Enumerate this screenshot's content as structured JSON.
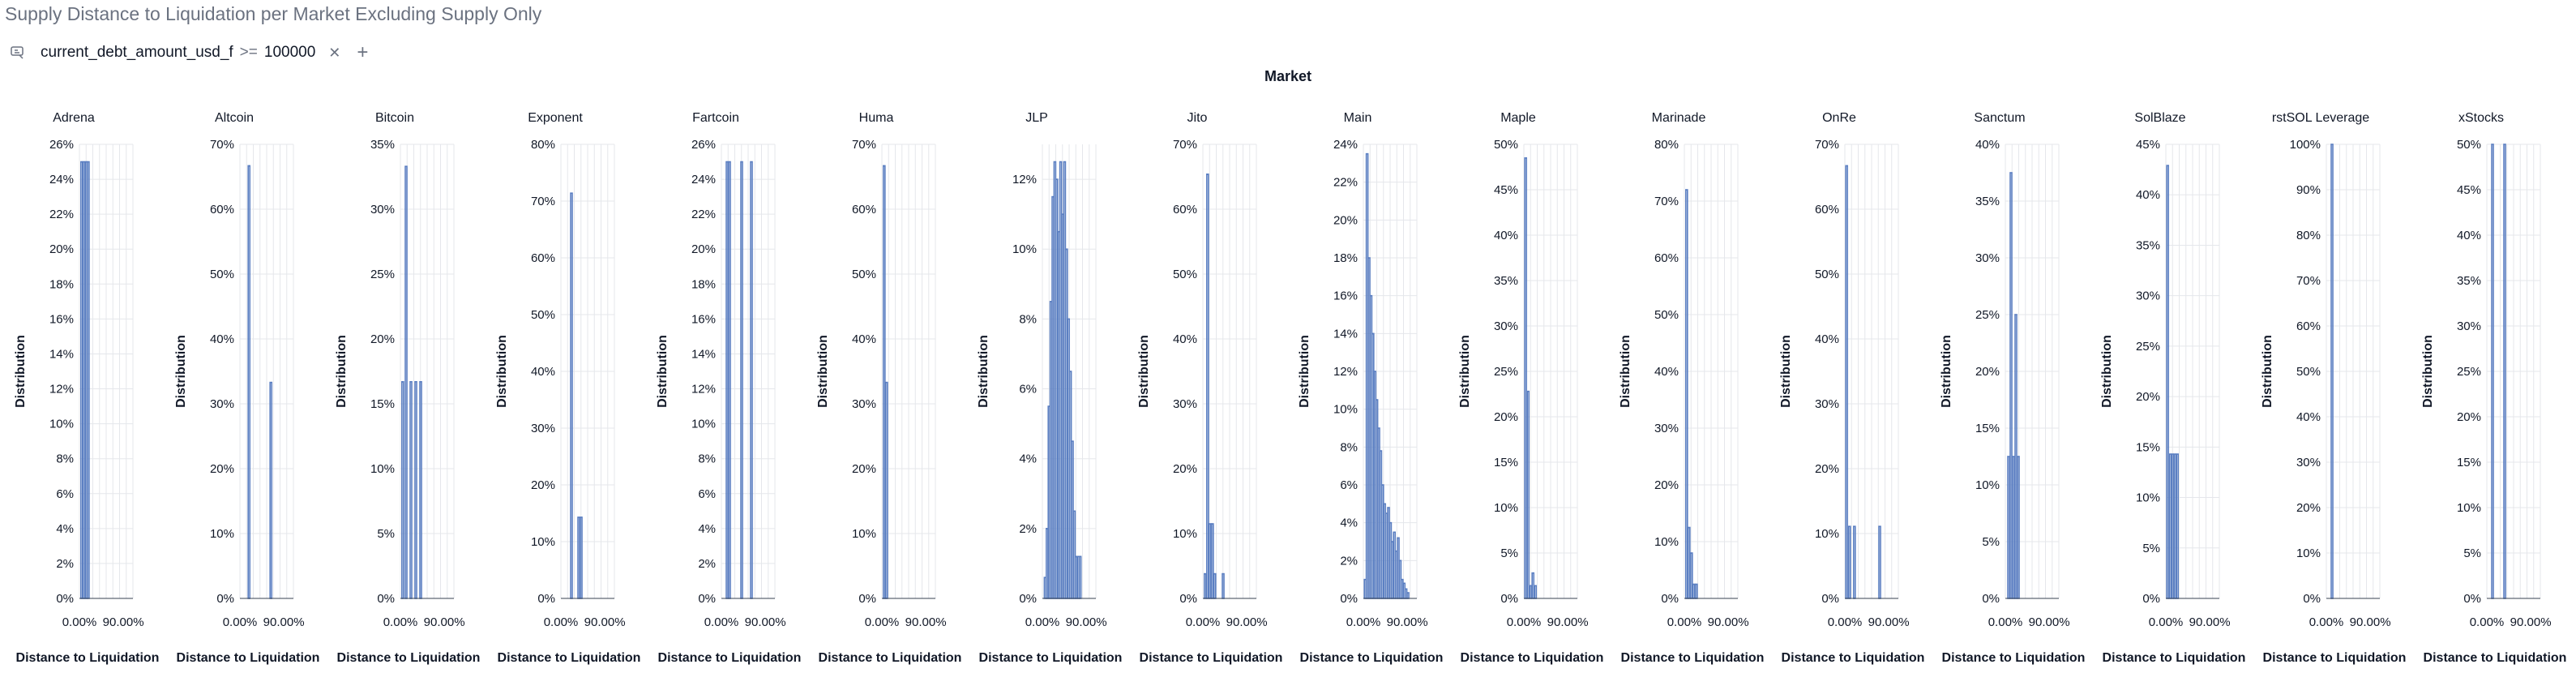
{
  "page": {
    "title": "Supply Distance to Liquidation per Market Excluding Supply Only",
    "filter": {
      "field": "current_debt_amount_usd_f",
      "operator": ">=",
      "value": "100000"
    },
    "facet_label": "Market"
  },
  "colors": {
    "bar": "#5b7fc2",
    "grid": "#e5e7eb",
    "axis": "#374151",
    "text": "#111827"
  },
  "icons": {
    "filter": "filter-icon",
    "close": "close-icon",
    "add": "plus-icon"
  },
  "chart_data": [
    {
      "type": "bar",
      "title": "Adrena",
      "xlabel": "Distance to Liquidation",
      "ylabel": "Distribution",
      "x_ticks": [
        "0.00%",
        "90.00%"
      ],
      "xlim": [
        0,
        1.1
      ],
      "ylim": [
        0,
        26
      ],
      "y_tick_step": 2,
      "bin_width": 0.045,
      "bins": [
        {
          "x": 0.03,
          "y": 25
        },
        {
          "x": 0.075,
          "y": 25
        },
        {
          "x": 0.12,
          "y": 25
        },
        {
          "x": 0.165,
          "y": 25
        }
      ]
    },
    {
      "type": "bar",
      "title": "Altcoin",
      "xlabel": "Distance to Liquidation",
      "ylabel": "Distribution",
      "x_ticks": [
        "0.00%",
        "90.00%"
      ],
      "xlim": [
        0,
        1.1
      ],
      "ylim": [
        0,
        70
      ],
      "y_tick_step": 10,
      "bin_width": 0.045,
      "bins": [
        {
          "x": 0.17,
          "y": 66.7
        },
        {
          "x": 0.62,
          "y": 33.3
        }
      ]
    },
    {
      "type": "bar",
      "title": "Bitcoin",
      "xlabel": "Distance to Liquidation",
      "ylabel": "Distribution",
      "x_ticks": [
        "0.00%",
        "90.00%"
      ],
      "xlim": [
        0,
        1.1
      ],
      "ylim": [
        0,
        35
      ],
      "y_tick_step": 5,
      "bin_width": 0.045,
      "bins": [
        {
          "x": 0.03,
          "y": 16.7
        },
        {
          "x": 0.1,
          "y": 33.3
        },
        {
          "x": 0.2,
          "y": 16.7
        },
        {
          "x": 0.3,
          "y": 16.7
        },
        {
          "x": 0.4,
          "y": 16.7
        }
      ]
    },
    {
      "type": "bar",
      "title": "Exponent",
      "xlabel": "Distance to Liquidation",
      "ylabel": "Distribution",
      "x_ticks": [
        "0.00%",
        "90.00%"
      ],
      "xlim": [
        0,
        1.1
      ],
      "ylim": [
        0,
        80
      ],
      "y_tick_step": 10,
      "bin_width": 0.045,
      "bins": [
        {
          "x": 0.2,
          "y": 71.4
        },
        {
          "x": 0.35,
          "y": 14.3
        },
        {
          "x": 0.4,
          "y": 14.3
        }
      ]
    },
    {
      "type": "bar",
      "title": "Fartcoin",
      "xlabel": "Distance to Liquidation",
      "ylabel": "Distribution",
      "x_ticks": [
        "0.00%",
        "90.00%"
      ],
      "xlim": [
        0,
        1.1
      ],
      "ylim": [
        0,
        26
      ],
      "y_tick_step": 2,
      "bin_width": 0.045,
      "bins": [
        {
          "x": 0.1,
          "y": 25
        },
        {
          "x": 0.15,
          "y": 25
        },
        {
          "x": 0.4,
          "y": 25
        },
        {
          "x": 0.6,
          "y": 25
        }
      ]
    },
    {
      "type": "bar",
      "title": "Huma",
      "xlabel": "Distance to Liquidation",
      "ylabel": "Distribution",
      "x_ticks": [
        "0.00%",
        "90.00%"
      ],
      "xlim": [
        0,
        1.1
      ],
      "ylim": [
        0,
        70
      ],
      "y_tick_step": 10,
      "bin_width": 0.045,
      "bins": [
        {
          "x": 0.03,
          "y": 66.7
        },
        {
          "x": 0.08,
          "y": 33.3
        }
      ]
    },
    {
      "type": "bar",
      "title": "JLP",
      "xlabel": "Distance to Liquidation",
      "ylabel": "Distribution",
      "x_ticks": [
        "0.00%",
        "90.00%"
      ],
      "xlim": [
        0,
        1.1
      ],
      "ylim": [
        0,
        13
      ],
      "y_tick_step": 2,
      "bin_width": 0.045,
      "bins": [
        {
          "x": 0.04,
          "y": 0.6
        },
        {
          "x": 0.08,
          "y": 2.0
        },
        {
          "x": 0.12,
          "y": 5.5
        },
        {
          "x": 0.16,
          "y": 8.5
        },
        {
          "x": 0.2,
          "y": 11.5
        },
        {
          "x": 0.24,
          "y": 12.5
        },
        {
          "x": 0.28,
          "y": 12.0
        },
        {
          "x": 0.32,
          "y": 10.5
        },
        {
          "x": 0.36,
          "y": 12.5
        },
        {
          "x": 0.4,
          "y": 11.0
        },
        {
          "x": 0.44,
          "y": 12.5
        },
        {
          "x": 0.48,
          "y": 10.0
        },
        {
          "x": 0.52,
          "y": 8.0
        },
        {
          "x": 0.56,
          "y": 6.5
        },
        {
          "x": 0.6,
          "y": 4.5
        },
        {
          "x": 0.64,
          "y": 2.5
        },
        {
          "x": 0.68,
          "y": 1.2
        },
        {
          "x": 0.72,
          "y": 1.2
        },
        {
          "x": 0.76,
          "y": 1.2
        }
      ]
    },
    {
      "type": "bar",
      "title": "Jito",
      "xlabel": "Distance to Liquidation",
      "ylabel": "Distribution",
      "x_ticks": [
        "0.00%",
        "90.00%"
      ],
      "xlim": [
        0,
        1.1
      ],
      "ylim": [
        0,
        70
      ],
      "y_tick_step": 10,
      "bin_width": 0.045,
      "bins": [
        {
          "x": 0.03,
          "y": 3.8
        },
        {
          "x": 0.08,
          "y": 65.4
        },
        {
          "x": 0.13,
          "y": 11.5
        },
        {
          "x": 0.18,
          "y": 11.5
        },
        {
          "x": 0.23,
          "y": 3.8
        },
        {
          "x": 0.4,
          "y": 3.8
        }
      ]
    },
    {
      "type": "bar",
      "title": "Main",
      "xlabel": "Distance to Liquidation",
      "ylabel": "Distribution",
      "x_ticks": [
        "0.00%",
        "90.00%"
      ],
      "xlim": [
        0,
        1.1
      ],
      "ylim": [
        0,
        24
      ],
      "y_tick_step": 2,
      "bin_width": 0.045,
      "bins": [
        {
          "x": 0.02,
          "y": 1.0
        },
        {
          "x": 0.06,
          "y": 23.5
        },
        {
          "x": 0.1,
          "y": 18.0
        },
        {
          "x": 0.14,
          "y": 16.0
        },
        {
          "x": 0.18,
          "y": 14.0
        },
        {
          "x": 0.22,
          "y": 12.0
        },
        {
          "x": 0.26,
          "y": 10.5
        },
        {
          "x": 0.3,
          "y": 9.0
        },
        {
          "x": 0.34,
          "y": 7.8
        },
        {
          "x": 0.38,
          "y": 6.0
        },
        {
          "x": 0.42,
          "y": 5.0
        },
        {
          "x": 0.46,
          "y": 4.5
        },
        {
          "x": 0.5,
          "y": 4.8
        },
        {
          "x": 0.54,
          "y": 4.0
        },
        {
          "x": 0.58,
          "y": 3.0
        },
        {
          "x": 0.62,
          "y": 3.5
        },
        {
          "x": 0.66,
          "y": 2.5
        },
        {
          "x": 0.7,
          "y": 3.2
        },
        {
          "x": 0.74,
          "y": 2.0
        },
        {
          "x": 0.78,
          "y": 1.0
        },
        {
          "x": 0.82,
          "y": 0.8
        },
        {
          "x": 0.86,
          "y": 0.5
        },
        {
          "x": 0.9,
          "y": 0.3
        }
      ]
    },
    {
      "type": "bar",
      "title": "Maple",
      "xlabel": "Distance to Liquidation",
      "ylabel": "Distribution",
      "x_ticks": [
        "0.00%",
        "90.00%"
      ],
      "xlim": [
        0,
        1.1
      ],
      "ylim": [
        0,
        50
      ],
      "y_tick_step": 5,
      "bin_width": 0.045,
      "bins": [
        {
          "x": 0.02,
          "y": 48.5
        },
        {
          "x": 0.07,
          "y": 22.8
        },
        {
          "x": 0.12,
          "y": 1.4
        },
        {
          "x": 0.17,
          "y": 2.8
        },
        {
          "x": 0.22,
          "y": 1.4
        }
      ]
    },
    {
      "type": "bar",
      "title": "Marinade",
      "xlabel": "Distance to Liquidation",
      "ylabel": "Distribution",
      "x_ticks": [
        "0.00%",
        "90.00%"
      ],
      "xlim": [
        0,
        1.1
      ],
      "ylim": [
        0,
        80
      ],
      "y_tick_step": 10,
      "bin_width": 0.045,
      "bins": [
        {
          "x": 0.03,
          "y": 72.0
        },
        {
          "x": 0.08,
          "y": 12.5
        },
        {
          "x": 0.13,
          "y": 8.0
        },
        {
          "x": 0.18,
          "y": 2.5
        },
        {
          "x": 0.23,
          "y": 2.5
        }
      ]
    },
    {
      "type": "bar",
      "title": "OnRe",
      "xlabel": "Distance to Liquidation",
      "ylabel": "Distribution",
      "x_ticks": [
        "0.00%",
        "90.00%"
      ],
      "xlim": [
        0,
        1.1
      ],
      "ylim": [
        0,
        70
      ],
      "y_tick_step": 10,
      "bin_width": 0.045,
      "bins": [
        {
          "x": 0.02,
          "y": 66.7
        },
        {
          "x": 0.08,
          "y": 11.1
        },
        {
          "x": 0.18,
          "y": 11.1
        },
        {
          "x": 0.7,
          "y": 11.1
        }
      ]
    },
    {
      "type": "bar",
      "title": "Sanctum",
      "xlabel": "Distance to Liquidation",
      "ylabel": "Distribution",
      "x_ticks": [
        "0.00%",
        "90.00%"
      ],
      "xlim": [
        0,
        1.1
      ],
      "ylim": [
        0,
        40
      ],
      "y_tick_step": 5,
      "bin_width": 0.045,
      "bins": [
        {
          "x": 0.05,
          "y": 12.5
        },
        {
          "x": 0.1,
          "y": 37.5
        },
        {
          "x": 0.15,
          "y": 12.5
        },
        {
          "x": 0.2,
          "y": 25.0
        },
        {
          "x": 0.25,
          "y": 12.5
        }
      ]
    },
    {
      "type": "bar",
      "title": "SolBlaze",
      "xlabel": "Distance to Liquidation",
      "ylabel": "Distribution",
      "x_ticks": [
        "0.00%",
        "90.00%"
      ],
      "xlim": [
        0,
        1.1
      ],
      "ylim": [
        0,
        45
      ],
      "y_tick_step": 5,
      "bin_width": 0.045,
      "bins": [
        {
          "x": 0.02,
          "y": 42.9
        },
        {
          "x": 0.07,
          "y": 14.3
        },
        {
          "x": 0.12,
          "y": 14.3
        },
        {
          "x": 0.17,
          "y": 14.3
        },
        {
          "x": 0.22,
          "y": 14.3
        }
      ]
    },
    {
      "type": "bar",
      "title": "rstSOL Leverage",
      "xlabel": "Distance to Liquidation",
      "ylabel": "Distribution",
      "x_ticks": [
        "0.00%",
        "90.00%"
      ],
      "xlim": [
        0,
        1.1
      ],
      "ylim": [
        0,
        100
      ],
      "y_tick_step": 10,
      "bin_width": 0.045,
      "bins": [
        {
          "x": 0.1,
          "y": 100
        }
      ]
    },
    {
      "type": "bar",
      "title": "xStocks",
      "xlabel": "Distance to Liquidation",
      "ylabel": "Distribution",
      "x_ticks": [
        "0.00%",
        "90.00%"
      ],
      "xlim": [
        0,
        1.1
      ],
      "ylim": [
        0,
        50
      ],
      "y_tick_step": 5,
      "bin_width": 0.045,
      "bins": [
        {
          "x": 0.1,
          "y": 50
        },
        {
          "x": 0.35,
          "y": 50
        }
      ]
    }
  ]
}
